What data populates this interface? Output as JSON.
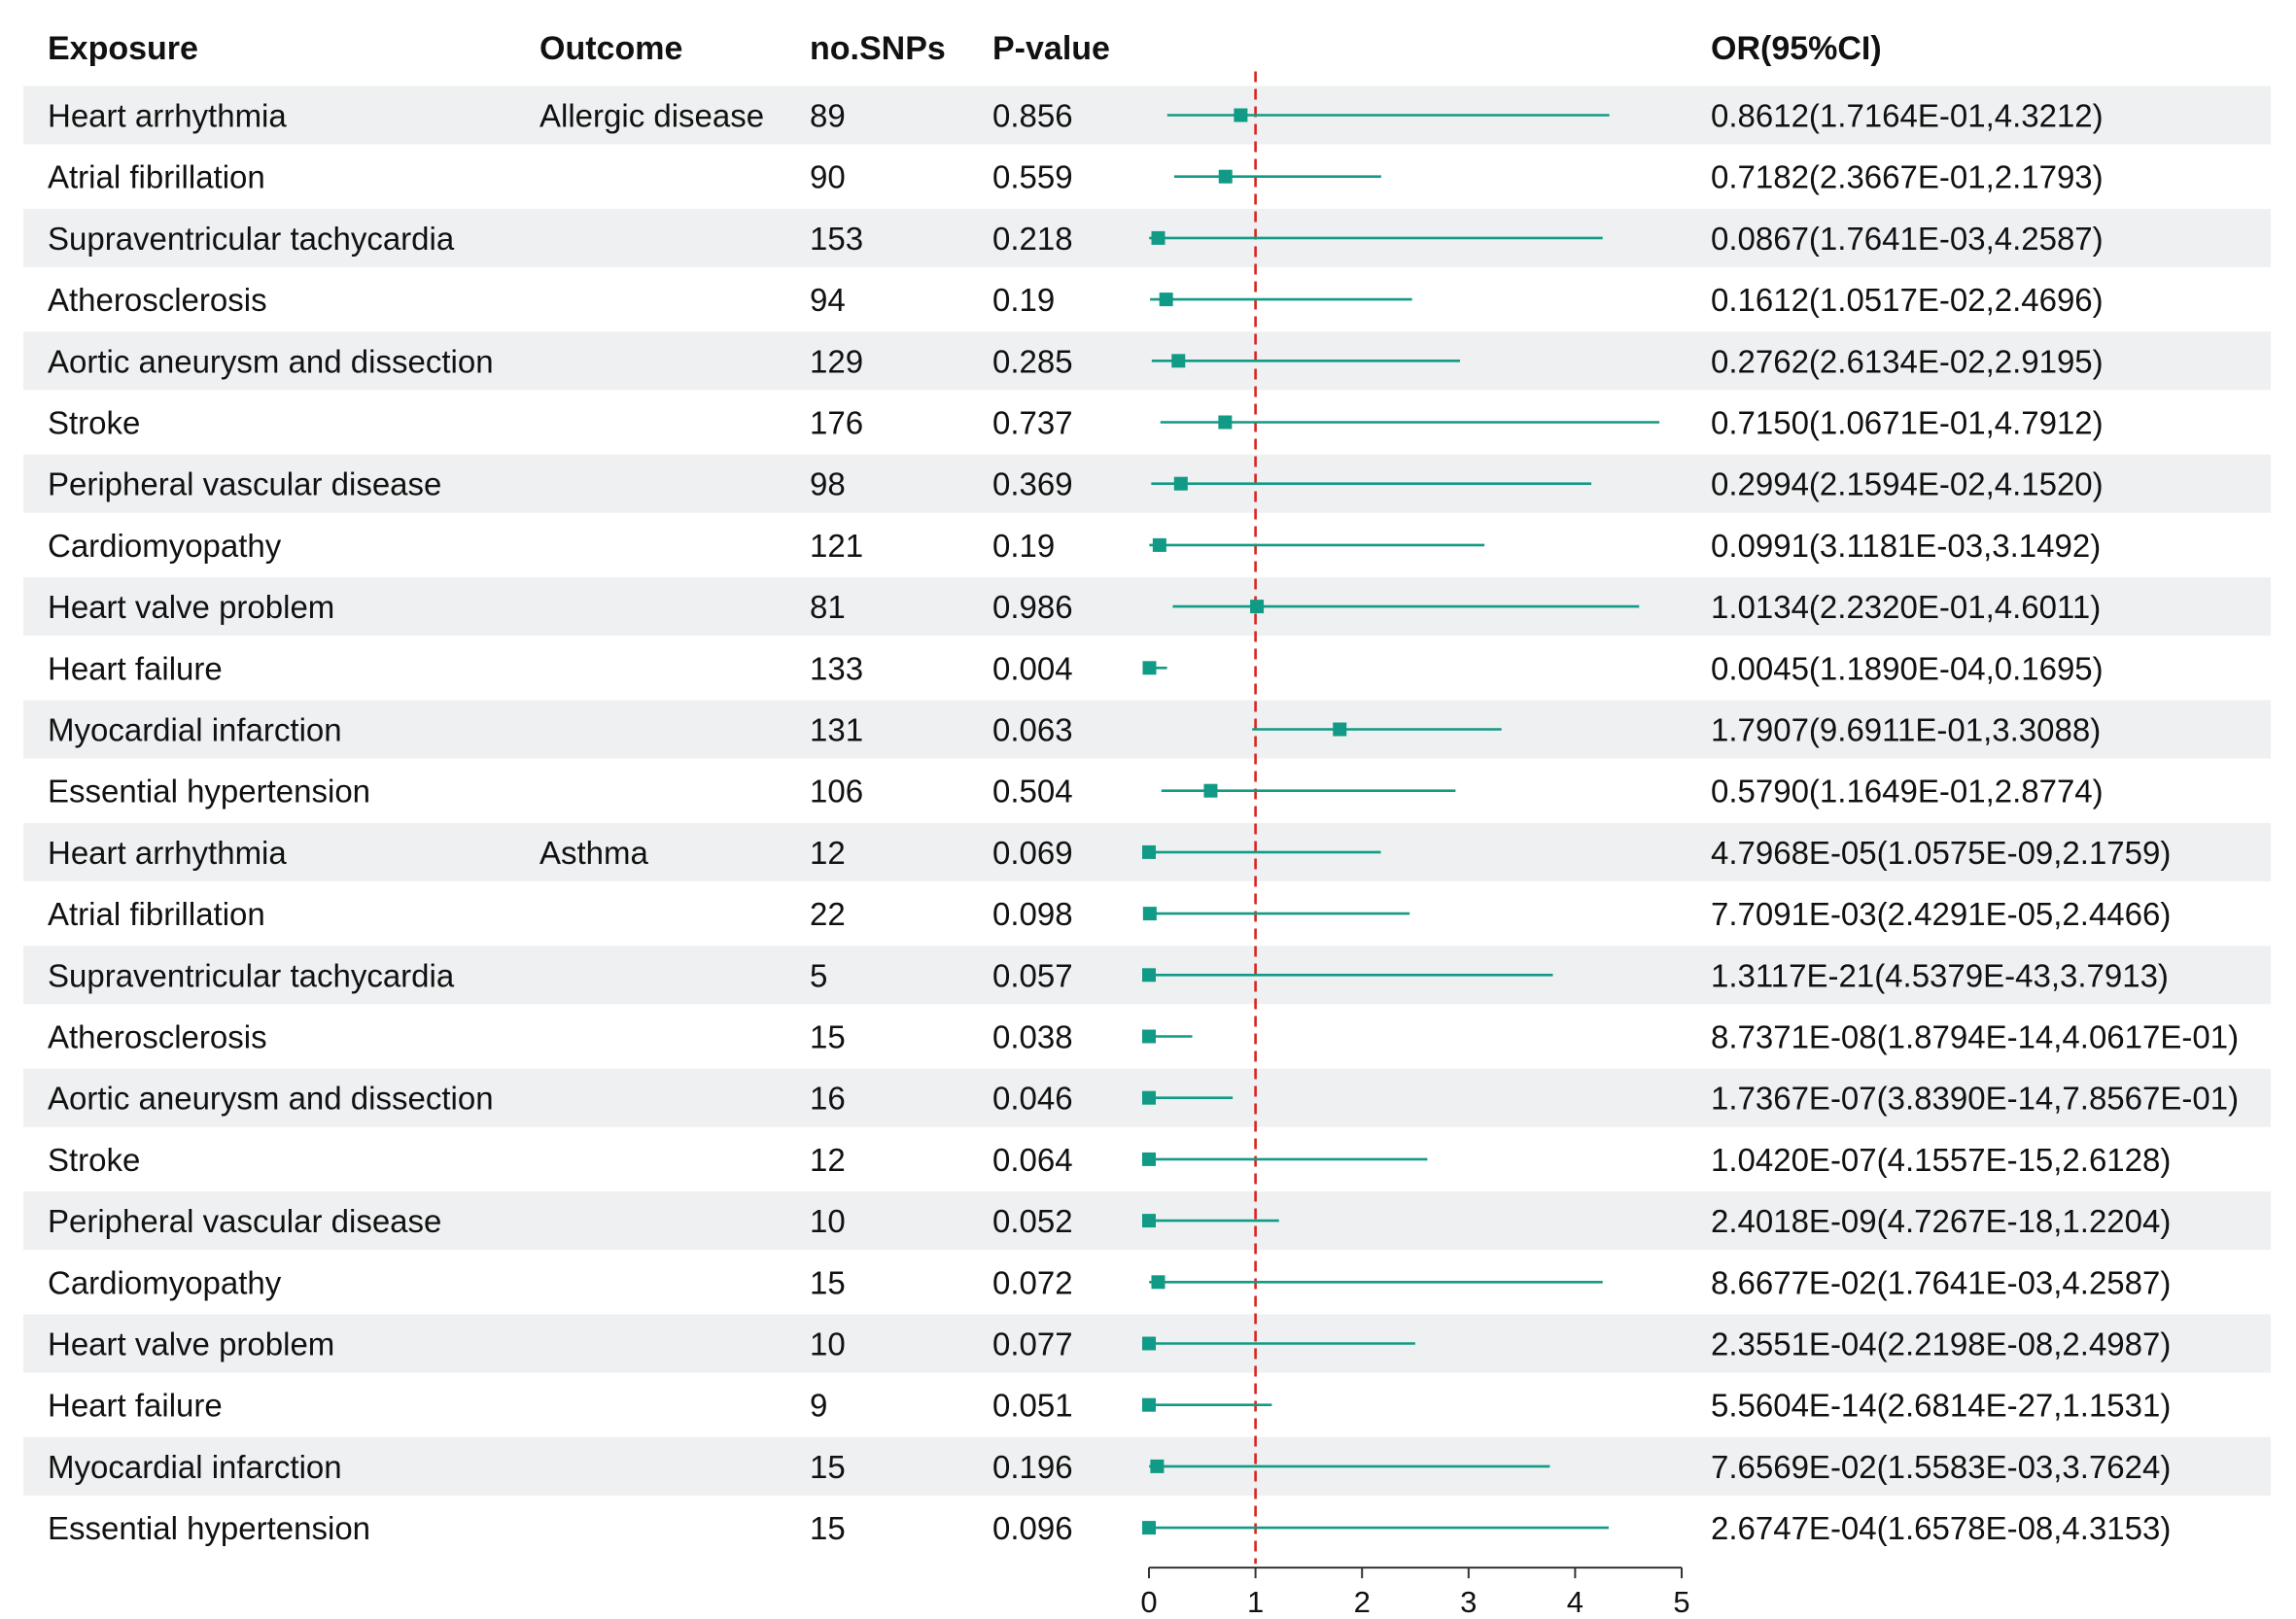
{
  "colors": {
    "band": "#eef0f1",
    "marker": "#119a85",
    "ref_line": "#d7251f",
    "axis": "#333333"
  },
  "headers": {
    "exposure": "Exposure",
    "outcome": "Outcome",
    "nsnps": "no.SNPs",
    "pvalue": "P-value",
    "or": "OR(95%CI)"
  },
  "chart_data": {
    "type": "forest",
    "title": "",
    "xlabel": "",
    "ylabel": "",
    "xlim": [
      0,
      5
    ],
    "xticks": [
      0,
      1,
      2,
      3,
      4,
      5
    ],
    "reference_line": 1,
    "rows": [
      {
        "exposure": "Heart arrhythmia",
        "outcome": "Allergic disease",
        "nsnps": "89",
        "p": "0.856",
        "or_text": "0.8612(1.7164E-01,4.3212)",
        "or": 0.8612,
        "lo": 0.17164,
        "hi": 4.3212
      },
      {
        "exposure": "Atrial fibrillation",
        "outcome": "",
        "nsnps": "90",
        "p": "0.559",
        "or_text": "0.7182(2.3667E-01,2.1793)",
        "or": 0.7182,
        "lo": 0.23667,
        "hi": 2.1793
      },
      {
        "exposure": "Supraventricular tachycardia",
        "outcome": "",
        "nsnps": "153",
        "p": "0.218",
        "or_text": "0.0867(1.7641E-03,4.2587)",
        "or": 0.0867,
        "lo": 0.0017641,
        "hi": 4.2587
      },
      {
        "exposure": "Atherosclerosis",
        "outcome": "",
        "nsnps": "94",
        "p": "0.19",
        "or_text": "0.1612(1.0517E-02,2.4696)",
        "or": 0.1612,
        "lo": 0.010517,
        "hi": 2.4696
      },
      {
        "exposure": "Aortic aneurysm and dissection",
        "outcome": "",
        "nsnps": "129",
        "p": "0.285",
        "or_text": "0.2762(2.6134E-02,2.9195)",
        "or": 0.2762,
        "lo": 0.026134,
        "hi": 2.9195
      },
      {
        "exposure": "Stroke",
        "outcome": "",
        "nsnps": "176",
        "p": "0.737",
        "or_text": "0.7150(1.0671E-01,4.7912)",
        "or": 0.715,
        "lo": 0.10671,
        "hi": 4.7912
      },
      {
        "exposure": "Peripheral vascular disease",
        "outcome": "",
        "nsnps": "98",
        "p": "0.369",
        "or_text": "0.2994(2.1594E-02,4.1520)",
        "or": 0.2994,
        "lo": 0.021594,
        "hi": 4.152
      },
      {
        "exposure": "Cardiomyopathy",
        "outcome": "",
        "nsnps": "121",
        "p": "0.19",
        "or_text": "0.0991(3.1181E-03,3.1492)",
        "or": 0.0991,
        "lo": 0.0031181,
        "hi": 3.1492
      },
      {
        "exposure": "Heart valve problem",
        "outcome": "",
        "nsnps": "81",
        "p": "0.986",
        "or_text": "1.0134(2.2320E-01,4.6011)",
        "or": 1.0134,
        "lo": 0.2232,
        "hi": 4.6011
      },
      {
        "exposure": "Heart failure",
        "outcome": "",
        "nsnps": "133",
        "p": "0.004",
        "or_text": "0.0045(1.1890E-04,0.1695)",
        "or": 0.0045,
        "lo": 0.0001189,
        "hi": 0.1695
      },
      {
        "exposure": "Myocardial infarction",
        "outcome": "",
        "nsnps": "131",
        "p": "0.063",
        "or_text": "1.7907(9.6911E-01,3.3088)",
        "or": 1.7907,
        "lo": 0.96911,
        "hi": 3.3088
      },
      {
        "exposure": "Essential hypertension",
        "outcome": "",
        "nsnps": "106",
        "p": "0.504",
        "or_text": "0.5790(1.1649E-01,2.8774)",
        "or": 0.579,
        "lo": 0.11649,
        "hi": 2.8774
      },
      {
        "exposure": "Heart arrhythmia",
        "outcome": "Asthma",
        "nsnps": "12",
        "p": "0.069",
        "or_text": "4.7968E-05(1.0575E-09,2.1759)",
        "or": 4.7968e-05,
        "lo": 1.0575e-09,
        "hi": 2.1759
      },
      {
        "exposure": "Atrial fibrillation",
        "outcome": "",
        "nsnps": "22",
        "p": "0.098",
        "or_text": "7.7091E-03(2.4291E-05,2.4466)",
        "or": 0.0077091,
        "lo": 2.4291e-05,
        "hi": 2.4466
      },
      {
        "exposure": "Supraventricular tachycardia",
        "outcome": "",
        "nsnps": "5",
        "p": "0.057",
        "or_text": "1.3117E-21(4.5379E-43,3.7913)",
        "or": 1.3117e-21,
        "lo": 4.5379e-43,
        "hi": 3.7913
      },
      {
        "exposure": "Atherosclerosis",
        "outcome": "",
        "nsnps": "15",
        "p": "0.038",
        "or_text": "8.7371E-08(1.8794E-14,4.0617E-01)",
        "or": 8.7371e-08,
        "lo": 1.8794e-14,
        "hi": 0.40617
      },
      {
        "exposure": "Aortic aneurysm and dissection",
        "outcome": "",
        "nsnps": "16",
        "p": "0.046",
        "or_text": "1.7367E-07(3.8390E-14,7.8567E-01)",
        "or": 1.7367e-07,
        "lo": 3.839e-14,
        "hi": 0.78567
      },
      {
        "exposure": "Stroke",
        "outcome": "",
        "nsnps": "12",
        "p": "0.064",
        "or_text": "1.0420E-07(4.1557E-15,2.6128)",
        "or": 1.042e-07,
        "lo": 4.1557e-15,
        "hi": 2.6128
      },
      {
        "exposure": "Peripheral vascular disease",
        "outcome": "",
        "nsnps": "10",
        "p": "0.052",
        "or_text": "2.4018E-09(4.7267E-18,1.2204)",
        "or": 2.4018e-09,
        "lo": 4.7267e-18,
        "hi": 1.2204
      },
      {
        "exposure": "Cardiomyopathy",
        "outcome": "",
        "nsnps": "15",
        "p": "0.072",
        "or_text": "8.6677E-02(1.7641E-03,4.2587)",
        "or": 0.086677,
        "lo": 0.0017641,
        "hi": 4.2587
      },
      {
        "exposure": "Heart valve problem",
        "outcome": "",
        "nsnps": "10",
        "p": "0.077",
        "or_text": "2.3551E-04(2.2198E-08,2.4987)",
        "or": 0.00023551,
        "lo": 2.2198e-08,
        "hi": 2.4987
      },
      {
        "exposure": "Heart failure",
        "outcome": "",
        "nsnps": "9",
        "p": "0.051",
        "or_text": "5.5604E-14(2.6814E-27,1.1531)",
        "or": 5.5604e-14,
        "lo": 2.6814e-27,
        "hi": 1.1531
      },
      {
        "exposure": "Myocardial infarction",
        "outcome": "",
        "nsnps": "15",
        "p": "0.196",
        "or_text": "7.6569E-02(1.5583E-03,3.7624)",
        "or": 0.076569,
        "lo": 0.0015583,
        "hi": 3.7624
      },
      {
        "exposure": "Essential hypertension",
        "outcome": "",
        "nsnps": "15",
        "p": "0.096",
        "or_text": "2.6747E-04(1.6578E-08,4.3153)",
        "or": 0.00026747,
        "lo": 1.6578e-08,
        "hi": 4.3153
      }
    ]
  }
}
